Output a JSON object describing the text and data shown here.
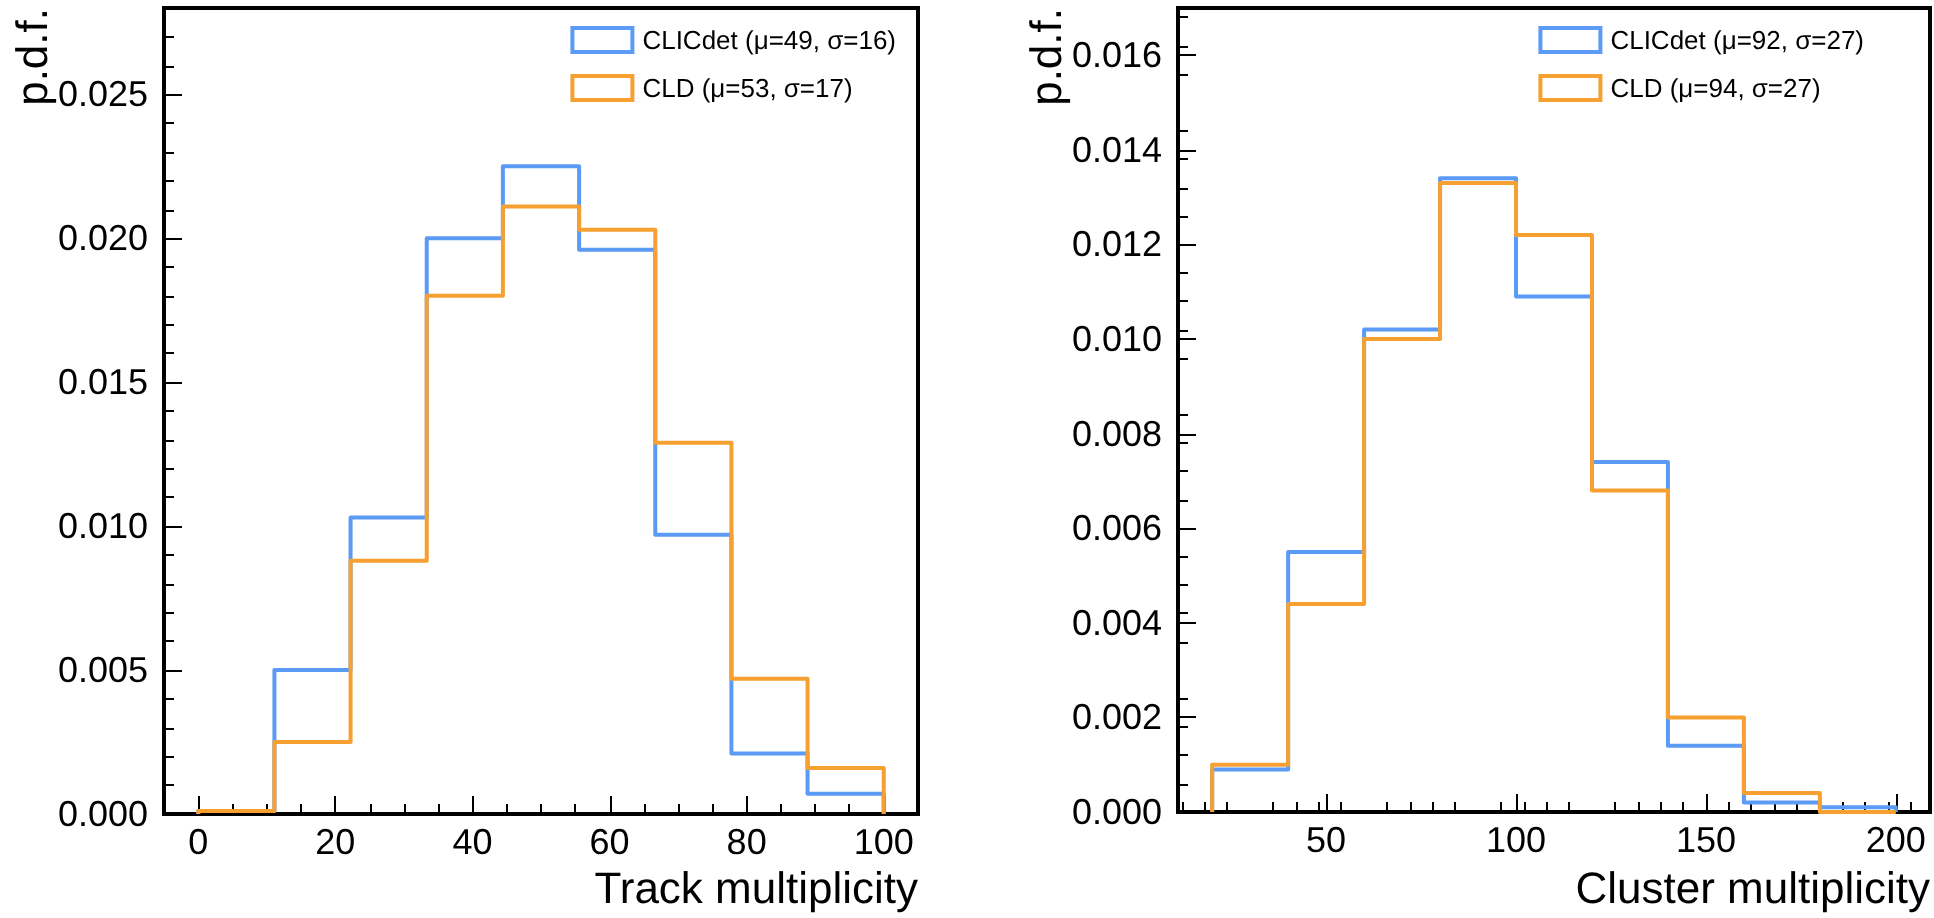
{
  "chart_data": [
    {
      "type": "histogram",
      "xlabel": "Track multiplicity",
      "ylabel": "p.d.f.",
      "bins": [
        0,
        11.11,
        22.22,
        33.33,
        44.44,
        55.56,
        66.67,
        77.78,
        88.89,
        100
      ],
      "xlim": [
        -5,
        105
      ],
      "xticks": [
        0,
        20,
        40,
        60,
        80,
        100
      ],
      "ylim": [
        0,
        0.028
      ],
      "yticks": [
        {
          "value": 0,
          "label": "0.000"
        },
        {
          "value": 0.005,
          "label": "0.005"
        },
        {
          "value": 0.01,
          "label": "0.010"
        },
        {
          "value": 0.015,
          "label": "0.015"
        },
        {
          "value": 0.02,
          "label": "0.020"
        },
        {
          "value": 0.025,
          "label": "0.025"
        }
      ],
      "legend": "top right",
      "grid": false,
      "series": [
        {
          "name": "CLICdet (μ=49, σ=16)",
          "color": "#5b9bf5",
          "values": [
            0.0001,
            0.005,
            0.0103,
            0.02,
            0.0225,
            0.0196,
            0.0097,
            0.0021,
            0.0007
          ]
        },
        {
          "name": "CLD (μ=53, σ=17)",
          "color": "#f5a030",
          "values": [
            0.0001,
            0.0025,
            0.0088,
            0.018,
            0.0211,
            0.0203,
            0.0129,
            0.0047,
            0.0016
          ]
        }
      ]
    },
    {
      "type": "histogram",
      "xlabel": "Cluster multiplicity",
      "ylabel": "p.d.f.",
      "bins": [
        20,
        40,
        60,
        80,
        100,
        120,
        140,
        160,
        180,
        200
      ],
      "xlim": [
        11,
        209
      ],
      "xticks": [
        50,
        100,
        150,
        200
      ],
      "ylim": [
        0,
        0.017
      ],
      "yticks": [
        {
          "value": 0,
          "label": "0.000"
        },
        {
          "value": 0.002,
          "label": "0.002"
        },
        {
          "value": 0.004,
          "label": "0.004"
        },
        {
          "value": 0.006,
          "label": "0.006"
        },
        {
          "value": 0.008,
          "label": "0.008"
        },
        {
          "value": 0.01,
          "label": "0.010"
        },
        {
          "value": 0.012,
          "label": "0.012"
        },
        {
          "value": 0.014,
          "label": "0.014"
        },
        {
          "value": 0.016,
          "label": "0.016"
        }
      ],
      "legend": "top right",
      "grid": false,
      "series": [
        {
          "name": "CLICdet (μ=92, σ=27)",
          "color": "#5b9bf5",
          "values": [
            0.0009,
            0.0055,
            0.0102,
            0.0134,
            0.0109,
            0.0074,
            0.0014,
            0.0002,
            0.0001
          ]
        },
        {
          "name": "CLD (μ=94, σ=27)",
          "color": "#f5a030",
          "values": [
            0.001,
            0.0044,
            0.01,
            0.0133,
            0.0122,
            0.0068,
            0.002,
            0.0004,
            0
          ]
        }
      ]
    }
  ]
}
